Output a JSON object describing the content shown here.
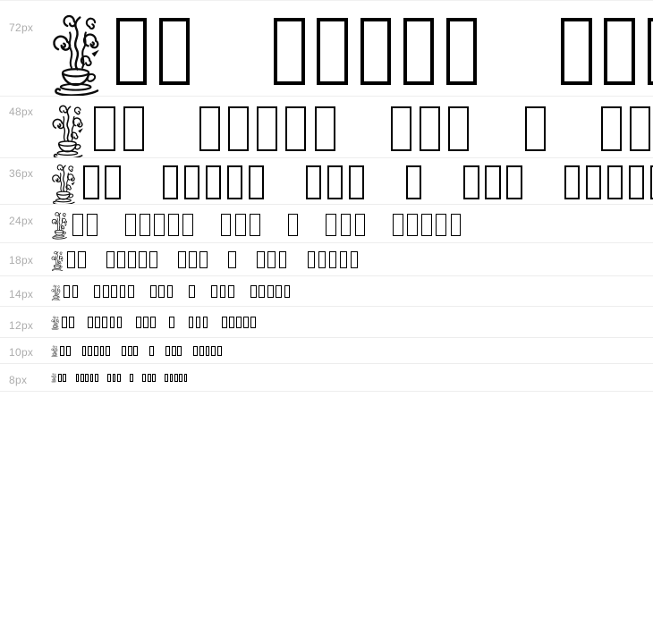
{
  "page": {
    "background": "#ffffff",
    "description": "Font preview waterfall for a coffee-cup dingbat font; most sample characters are missing from the font and render as .notdef hollow boxes"
  },
  "waterfall": {
    "rows": [
      {
        "label": "72px",
        "size": 72
      },
      {
        "label": "48px",
        "size": 48
      },
      {
        "label": "36px",
        "size": 36
      },
      {
        "label": "24px",
        "size": 24
      },
      {
        "label": "18px",
        "size": 18
      },
      {
        "label": "14px",
        "size": 14
      },
      {
        "label": "12px",
        "size": 12
      },
      {
        "label": "10px",
        "size": 10
      },
      {
        "label": "8px",
        "size": 8
      }
    ],
    "sample": {
      "first_glyph": "coffee-cup-with-steam",
      "word_glyph_counts": [
        3,
        5,
        3,
        1,
        3,
        5
      ],
      "notdef_char": "▯",
      "rendered_text": "☕▯▯ ▯▯▯▯▯ ▯▯▯ ▯ ▯▯▯ ▯▯▯▯▯"
    },
    "colors": {
      "glyph": "#000000",
      "label": "#adadad",
      "divider": "#ededed",
      "background": "#ffffff"
    }
  }
}
